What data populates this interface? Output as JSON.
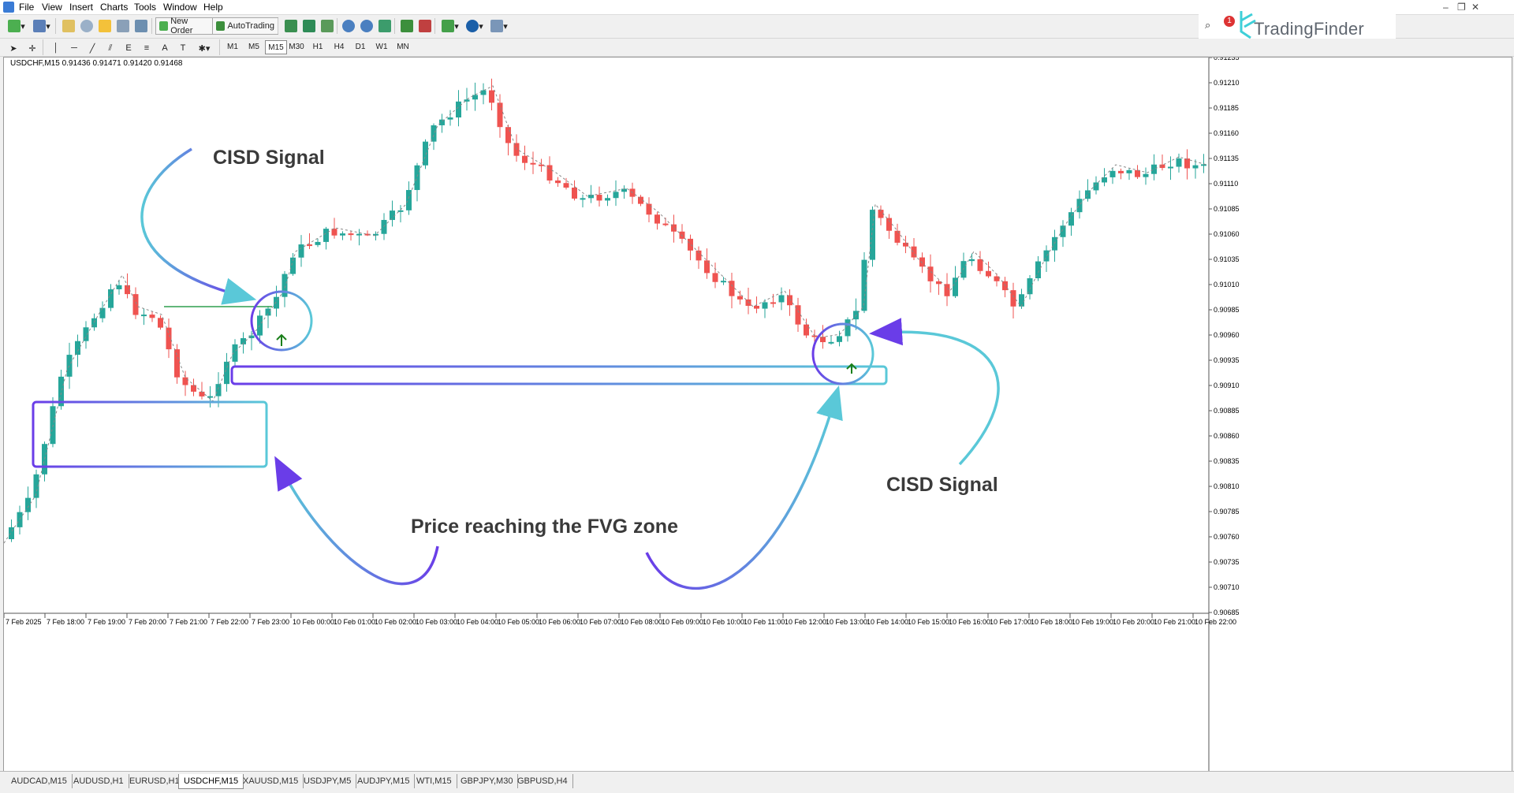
{
  "menu": [
    "File",
    "View",
    "Insert",
    "Charts",
    "Tools",
    "Window",
    "Help"
  ],
  "toolbar": {
    "new_order": "New Order",
    "autotrading": "AutoTrading",
    "timeframes": [
      "M1",
      "M5",
      "M15",
      "M30",
      "H1",
      "H4",
      "D1",
      "W1",
      "MN"
    ],
    "active_timeframe": "M15"
  },
  "logo": {
    "text": "TradingFinder"
  },
  "notification_count": "1",
  "chart": {
    "title": "USDCHF,M15  0.91436 0.91471 0.91420 0.91468",
    "price_labels": [
      "0.91235",
      "0.91210",
      "0.91185",
      "0.91160",
      "0.91135",
      "0.91110",
      "0.91085",
      "0.91060",
      "0.91035",
      "0.91010",
      "0.90985",
      "0.90960",
      "0.90935",
      "0.90910",
      "0.90885",
      "0.90860",
      "0.90835",
      "0.90810",
      "0.90785",
      "0.90760",
      "0.90735",
      "0.90710",
      "0.90685"
    ],
    "time_labels": [
      "7 Feb 2025",
      "7 Feb 18:00",
      "7 Feb 19:00",
      "7 Feb 20:00",
      "7 Feb 21:00",
      "7 Feb 22:00",
      "7 Feb 23:00",
      "10 Feb 00:00",
      "10 Feb 01:00",
      "10 Feb 02:00",
      "10 Feb 03:00",
      "10 Feb 04:00",
      "10 Feb 05:00",
      "10 Feb 06:00",
      "10 Feb 07:00",
      "10 Feb 08:00",
      "10 Feb 09:00",
      "10 Feb 10:00",
      "10 Feb 11:00",
      "10 Feb 12:00",
      "10 Feb 13:00",
      "10 Feb 14:00",
      "10 Feb 15:00",
      "10 Feb 16:00",
      "10 Feb 17:00",
      "10 Feb 18:00",
      "10 Feb 19:00",
      "10 Feb 20:00",
      "10 Feb 21:00",
      "10 Feb 22:00"
    ],
    "annotations": {
      "cisd_left": "CISD Signal",
      "cisd_right": "CISD Signal",
      "fvg": "Price reaching the FVG zone"
    },
    "colors": {
      "bull": "#26a69a",
      "bear": "#ef5350",
      "arrow": "#1a7f1a",
      "zone_purple": "#6a3de8",
      "zone_cyan": "#5ac8d8"
    }
  },
  "tabs": [
    "AUDCAD,M15",
    "AUDUSD,H1",
    "EURUSD,H1",
    "USDCHF,M15",
    "XAUUSD,M15",
    "USDJPY,M5",
    "AUDJPY,M15",
    "WTI,M15",
    "GBPJPY,M30",
    "GBPUSD,H4"
  ],
  "active_tab": "USDCHF,M15"
}
